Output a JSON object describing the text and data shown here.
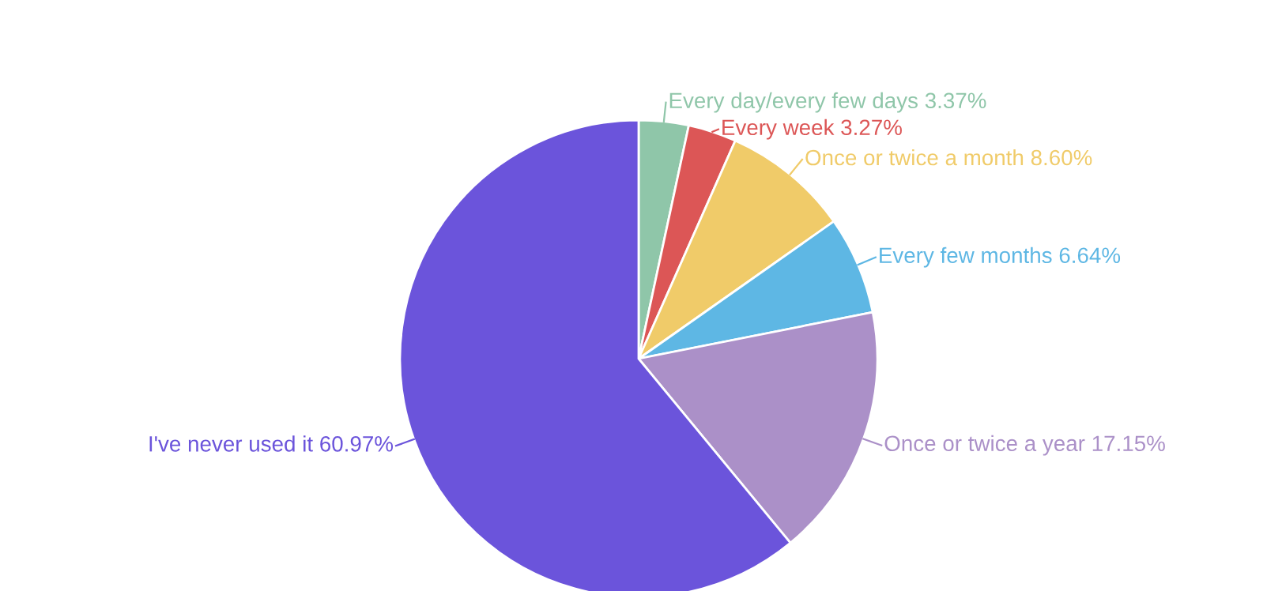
{
  "chart_data": {
    "type": "pie",
    "categories": [
      "Every day/every few days",
      "Every week",
      "Once or twice a month",
      "Every few months",
      "Once or twice a year",
      "I've never used it"
    ],
    "values": [
      3.37,
      3.27,
      8.6,
      6.64,
      17.15,
      60.97
    ],
    "value_labels": [
      "3.37%",
      "3.27%",
      "8.60%",
      "6.64%",
      "17.15%",
      "60.97%"
    ],
    "colors": [
      "#8fc6a9",
      "#dc5656",
      "#f0cb69",
      "#5eb7e4",
      "#ab90c8",
      "#6b54db"
    ]
  }
}
